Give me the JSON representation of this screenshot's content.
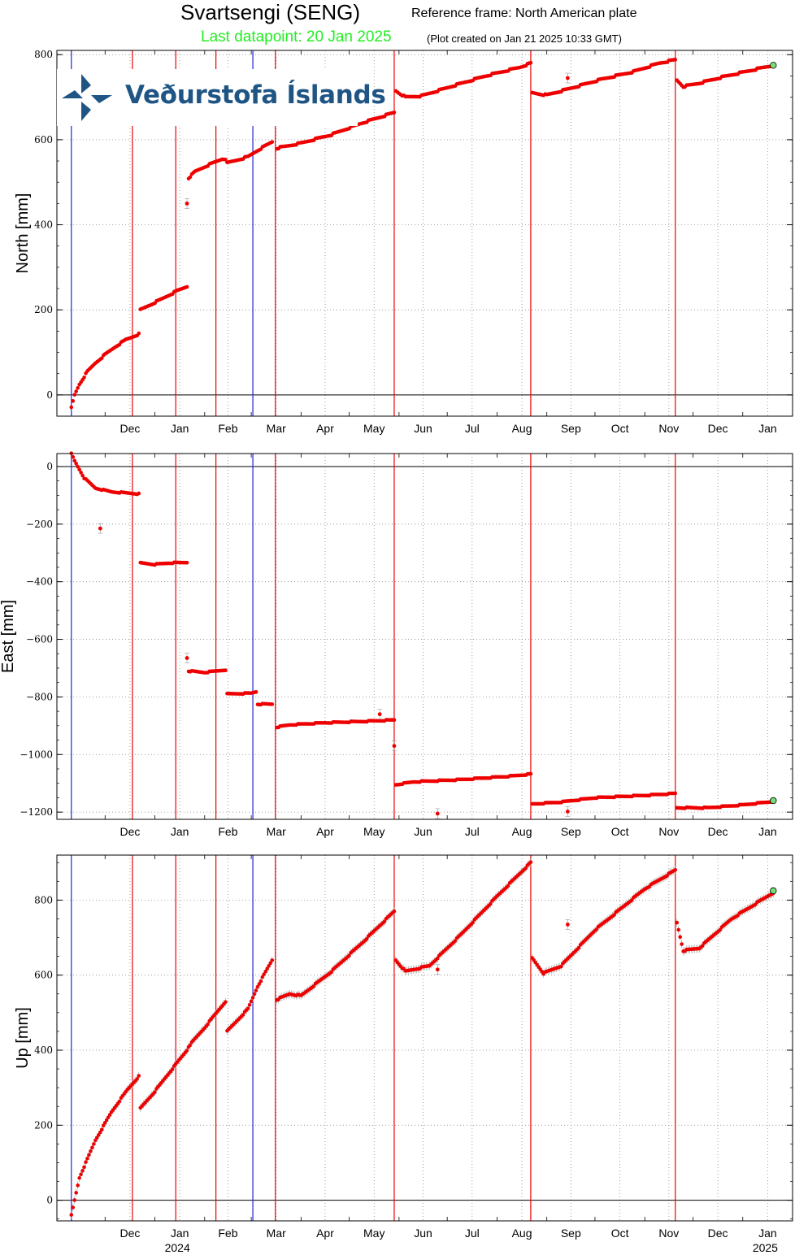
{
  "header": {
    "title": "Svartsengi (SENG)",
    "reference_frame": "Reference frame: North American plate",
    "last_datapoint": "Last datapoint: 20 Jan 2025",
    "plot_created": "(Plot created on Jan 21 2025 10:33 GMT)",
    "last_datapoint_color": "#22ee22"
  },
  "logo": {
    "text": "Veðurstofa Íslands",
    "color": "#1f5585"
  },
  "colors": {
    "data_points": "#ee0000",
    "event_line_red": "#ee0000",
    "event_line_blue": "#2222dd",
    "last_point": "#77dd77"
  },
  "chart_data": [
    {
      "type": "scatter",
      "ylabel": "North [mm]",
      "ylim": [
        -50,
        810
      ],
      "yticks": [
        0,
        200,
        400,
        600,
        800
      ],
      "grid": true,
      "xlim": [
        "2023-11-01",
        "2025-02-01"
      ],
      "x_month_labels": [
        "Dec",
        "Jan",
        "Feb",
        "Mar",
        "Apr",
        "May",
        "Jun",
        "Jul",
        "Aug",
        "Sep",
        "Oct",
        "Nov",
        "Dec",
        "Jan"
      ],
      "segments": [
        [
          [
            "2023-11-10",
            -30
          ],
          [
            "2023-11-12",
            0
          ],
          [
            "2023-11-15",
            25
          ],
          [
            "2023-11-20",
            55
          ],
          [
            "2023-11-25",
            75
          ],
          [
            "2023-12-01",
            95
          ],
          [
            "2023-12-08",
            115
          ],
          [
            "2023-12-14",
            130
          ],
          [
            "2023-12-22",
            143
          ]
        ],
        [
          [
            "2023-12-23",
            200
          ],
          [
            "2024-01-05",
            225
          ],
          [
            "2024-01-15",
            245
          ],
          [
            "2024-01-21",
            255
          ]
        ],
        [
          [
            "2024-01-22",
            510
          ],
          [
            "2024-01-26",
            525
          ],
          [
            "2024-02-03",
            540
          ],
          [
            "2024-02-12",
            555
          ],
          [
            "2024-02-14",
            555
          ]
        ],
        [
          [
            "2024-02-15",
            545
          ],
          [
            "2024-02-28",
            560
          ],
          [
            "2024-03-05",
            575
          ],
          [
            "2024-03-14",
            595
          ]
        ],
        [
          [
            "2024-03-17",
            580
          ],
          [
            "2024-04-01",
            592
          ],
          [
            "2024-04-20",
            612
          ],
          [
            "2024-05-08",
            638
          ],
          [
            "2024-05-29",
            664
          ]
        ],
        [
          [
            "2024-05-30",
            715
          ],
          [
            "2024-06-05",
            700
          ],
          [
            "2024-06-15",
            703
          ],
          [
            "2024-07-05",
            727
          ],
          [
            "2024-07-25",
            750
          ],
          [
            "2024-08-15",
            770
          ],
          [
            "2024-08-22",
            780
          ]
        ],
        [
          [
            "2024-08-23",
            710
          ],
          [
            "2024-09-01",
            705
          ],
          [
            "2024-09-15",
            720
          ],
          [
            "2024-10-05",
            742
          ],
          [
            "2024-10-25",
            760
          ],
          [
            "2024-11-10",
            780
          ],
          [
            "2024-11-20",
            788
          ]
        ],
        [
          [
            "2024-11-21",
            740
          ],
          [
            "2024-11-25",
            725
          ],
          [
            "2024-12-05",
            733
          ],
          [
            "2024-12-20",
            748
          ],
          [
            "2025-01-05",
            762
          ],
          [
            "2025-01-20",
            775
          ]
        ]
      ],
      "outliers": [
        [
          "2024-01-21",
          450
        ],
        [
          "2024-09-14",
          745
        ]
      ],
      "last_point": [
        "2025-01-20",
        775
      ]
    },
    {
      "type": "scatter",
      "ylabel": "East [mm]",
      "ylim": [
        -1225,
        45
      ],
      "yticks": [
        0,
        -200,
        -400,
        -600,
        -800,
        -1000,
        -1200
      ],
      "grid": true,
      "xlim": [
        "2023-11-01",
        "2025-02-01"
      ],
      "x_month_labels": [
        "Dec",
        "Jan",
        "Feb",
        "Mar",
        "Apr",
        "May",
        "Jun",
        "Jul",
        "Aug",
        "Sep",
        "Oct",
        "Nov",
        "Dec",
        "Jan"
      ],
      "segments": [
        [
          [
            "2023-11-10",
            45
          ],
          [
            "2023-11-12",
            20
          ],
          [
            "2023-11-18",
            -40
          ],
          [
            "2023-11-25",
            -75
          ],
          [
            "2023-12-05",
            -88
          ],
          [
            "2023-12-15",
            -92
          ],
          [
            "2023-12-22",
            -95
          ]
        ],
        [
          [
            "2023-12-23",
            -335
          ],
          [
            "2024-01-01",
            -340
          ],
          [
            "2024-01-10",
            -335
          ],
          [
            "2024-01-21",
            -333
          ]
        ],
        [
          [
            "2024-01-22",
            -710
          ],
          [
            "2024-02-01",
            -715
          ],
          [
            "2024-02-14",
            -706
          ]
        ],
        [
          [
            "2024-02-15",
            -790
          ],
          [
            "2024-03-01",
            -787
          ],
          [
            "2024-03-04",
            -782
          ]
        ],
        [
          [
            "2024-03-05",
            -825
          ],
          [
            "2024-03-14",
            -825
          ]
        ],
        [
          [
            "2024-03-17",
            -905
          ],
          [
            "2024-03-25",
            -897
          ],
          [
            "2024-04-15",
            -890
          ],
          [
            "2024-05-10",
            -885
          ],
          [
            "2024-05-29",
            -880
          ]
        ],
        [
          [
            "2024-05-30",
            -1105
          ],
          [
            "2024-06-10",
            -1095
          ],
          [
            "2024-07-10",
            -1087
          ],
          [
            "2024-08-10",
            -1075
          ],
          [
            "2024-08-22",
            -1068
          ]
        ],
        [
          [
            "2024-08-23",
            -1172
          ],
          [
            "2024-09-10",
            -1165
          ],
          [
            "2024-10-01",
            -1150
          ],
          [
            "2024-11-01",
            -1142
          ],
          [
            "2024-11-20",
            -1135
          ]
        ],
        [
          [
            "2024-11-21",
            -1185
          ],
          [
            "2024-12-10",
            -1185
          ],
          [
            "2025-01-01",
            -1175
          ],
          [
            "2025-01-20",
            -1163
          ]
        ]
      ],
      "outliers": [
        [
          "2023-11-28",
          -215
        ],
        [
          "2024-01-21",
          -665
        ],
        [
          "2024-05-20",
          -860
        ],
        [
          "2024-05-29",
          -970
        ],
        [
          "2024-06-25",
          -1205
        ],
        [
          "2024-09-14",
          -1198
        ]
      ],
      "last_point": [
        "2025-01-20",
        -1160
      ]
    },
    {
      "type": "scatter",
      "ylabel": "Up [mm]",
      "ylim": [
        -55,
        920
      ],
      "yticks": [
        0,
        200,
        400,
        600,
        800
      ],
      "grid": true,
      "xlim": [
        "2023-11-01",
        "2025-02-01"
      ],
      "x_month_labels": [
        "Dec",
        "Jan",
        "Feb",
        "Mar",
        "Apr",
        "May",
        "Jun",
        "Jul",
        "Aug",
        "Sep",
        "Oct",
        "Nov",
        "Dec",
        "Jan"
      ],
      "x_year_labels": [
        [
          "2024-01-15",
          "2024"
        ],
        [
          "2025-01-15",
          "2025"
        ]
      ],
      "segments": [
        [
          [
            "2023-11-10",
            -40
          ],
          [
            "2023-11-15",
            60
          ],
          [
            "2023-11-25",
            160
          ],
          [
            "2023-12-05",
            235
          ],
          [
            "2023-12-15",
            295
          ],
          [
            "2023-12-22",
            330
          ]
        ],
        [
          [
            "2023-12-23",
            245
          ],
          [
            "2024-01-01",
            290
          ],
          [
            "2024-01-10",
            340
          ],
          [
            "2024-01-21",
            400
          ]
        ],
        [
          [
            "2024-01-22",
            410
          ],
          [
            "2024-02-01",
            460
          ],
          [
            "2024-02-14",
            530
          ]
        ],
        [
          [
            "2024-02-15",
            450
          ],
          [
            "2024-02-28",
            510
          ],
          [
            "2024-03-05",
            570
          ],
          [
            "2024-03-14",
            640
          ]
        ],
        [
          [
            "2024-03-17",
            535
          ],
          [
            "2024-03-25",
            550
          ],
          [
            "2024-04-01",
            545
          ],
          [
            "2024-04-20",
            610
          ],
          [
            "2024-05-10",
            690
          ],
          [
            "2024-05-29",
            770
          ]
        ],
        [
          [
            "2024-05-30",
            640
          ],
          [
            "2024-06-05",
            610
          ],
          [
            "2024-06-20",
            625
          ],
          [
            "2024-07-10",
            710
          ],
          [
            "2024-08-01",
            810
          ],
          [
            "2024-08-22",
            900
          ]
        ],
        [
          [
            "2024-08-23",
            645
          ],
          [
            "2024-08-30",
            605
          ],
          [
            "2024-09-10",
            625
          ],
          [
            "2024-10-01",
            720
          ],
          [
            "2024-11-01",
            830
          ],
          [
            "2024-11-20",
            880
          ]
        ],
        [
          [
            "2024-11-21",
            740
          ],
          [
            "2024-11-25",
            665
          ],
          [
            "2024-12-05",
            672
          ],
          [
            "2024-12-25",
            750
          ],
          [
            "2025-01-20",
            820
          ]
        ]
      ],
      "outliers": [
        [
          "2024-06-25",
          615
        ],
        [
          "2024-09-14",
          735
        ]
      ],
      "last_point": [
        "2025-01-20",
        825
      ]
    }
  ],
  "event_lines": [
    {
      "date": "2023-11-10",
      "color": "blue"
    },
    {
      "date": "2023-12-18",
      "color": "red"
    },
    {
      "date": "2024-01-14",
      "color": "red"
    },
    {
      "date": "2024-02-08",
      "color": "red"
    },
    {
      "date": "2024-03-02",
      "color": "blue"
    },
    {
      "date": "2024-03-16",
      "color": "red"
    },
    {
      "date": "2024-05-29",
      "color": "red"
    },
    {
      "date": "2024-08-22",
      "color": "red"
    },
    {
      "date": "2024-11-20",
      "color": "red"
    }
  ]
}
